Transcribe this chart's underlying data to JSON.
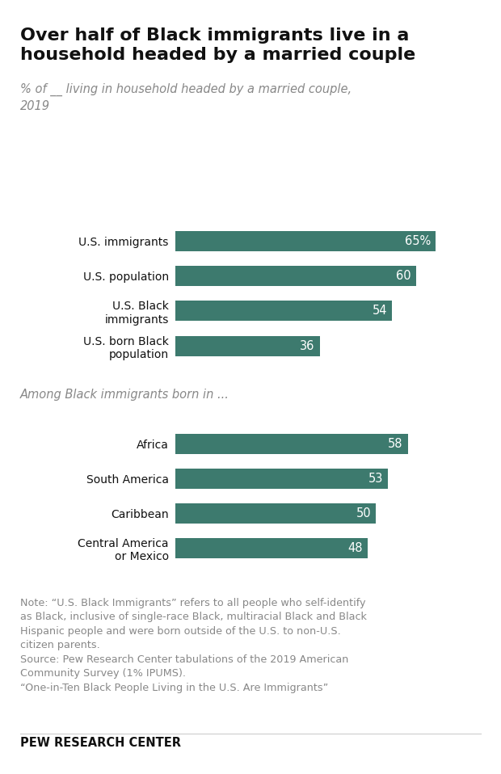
{
  "title": "Over half of Black immigrants live in a\nhousehold headed by a married couple",
  "subtitle": "% of __ living in household headed by a married couple,\n2019",
  "section1_categories": [
    "U.S. immigrants",
    "U.S. population",
    "U.S. Black\nimmigrants",
    "U.S. born Black\npopulation"
  ],
  "section1_values": [
    65,
    60,
    54,
    36
  ],
  "section1_labels": [
    "65%",
    "60",
    "54",
    "36"
  ],
  "section2_header": "Among Black immigrants born in ...",
  "section2_categories": [
    "Africa",
    "South America",
    "Caribbean",
    "Central America\nor Mexico"
  ],
  "section2_values": [
    58,
    53,
    50,
    48
  ],
  "section2_labels": [
    "58",
    "53",
    "50",
    "48"
  ],
  "bar_color": "#3d7a6e",
  "bar_height": 0.58,
  "note_text": "Note: “U.S. Black Immigrants” refers to all people who self-identify\nas Black, inclusive of single-race Black, multiracial Black and Black\nHispanic people and were born outside of the U.S. to non-U.S.\ncitizen parents.\nSource: Pew Research Center tabulations of the 2019 American\nCommunity Survey (1% IPUMS).\n“One-in-Ten Black People Living in the U.S. Are Immigrants”",
  "footer": "PEW RESEARCH CENTER",
  "xlim": [
    0,
    75
  ],
  "background_color": "#ffffff",
  "title_color": "#111111",
  "subtitle_color": "#888888",
  "note_color": "#888888",
  "footer_color": "#111111",
  "label_color": "#ffffff",
  "yticklabel_color": "#111111"
}
